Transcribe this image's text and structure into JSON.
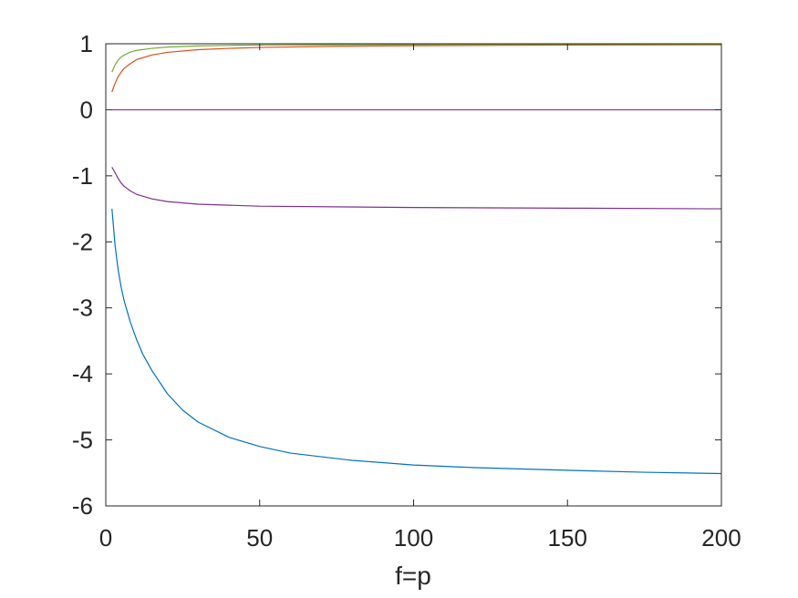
{
  "chart_data": {
    "type": "line",
    "title": "",
    "xlabel": "f=p",
    "ylabel": "",
    "xlim": [
      0,
      200
    ],
    "ylim": [
      -6,
      1
    ],
    "xticks": [
      0,
      50,
      100,
      150,
      200
    ],
    "yticks": [
      1,
      0,
      -1,
      -2,
      -3,
      -4,
      -5,
      -6
    ],
    "grid": false,
    "legend": "none",
    "series": [
      {
        "color": "#0072BD",
        "x": [
          2,
          3,
          4,
          5,
          6,
          8,
          10,
          12,
          15,
          20,
          25,
          30,
          40,
          50,
          60,
          80,
          100,
          120,
          150,
          175,
          200
        ],
        "y": [
          -1.5,
          -2.05,
          -2.42,
          -2.69,
          -2.9,
          -3.22,
          -3.48,
          -3.7,
          -3.95,
          -4.3,
          -4.55,
          -4.73,
          -4.96,
          -5.1,
          -5.2,
          -5.31,
          -5.38,
          -5.42,
          -5.46,
          -5.49,
          -5.51
        ]
      },
      {
        "color": "#D95319",
        "x": [
          2,
          3,
          4,
          5,
          6,
          8,
          10,
          15,
          20,
          30,
          40,
          50,
          75,
          100,
          150,
          200
        ],
        "y": [
          0.27,
          0.4,
          0.5,
          0.57,
          0.63,
          0.7,
          0.76,
          0.83,
          0.87,
          0.91,
          0.93,
          0.944,
          0.962,
          0.971,
          0.98,
          0.985
        ]
      },
      {
        "color": "#77AC30",
        "x": [
          2,
          3,
          4,
          5,
          6,
          8,
          10,
          15,
          20,
          30,
          40,
          50,
          100,
          200
        ],
        "y": [
          0.57,
          0.68,
          0.75,
          0.8,
          0.83,
          0.875,
          0.9,
          0.93,
          0.95,
          0.967,
          0.975,
          0.98,
          0.99,
          0.995
        ]
      },
      {
        "color": "#7E2F8E",
        "x": [
          2,
          200
        ],
        "y": [
          0.0,
          0.0
        ]
      },
      {
        "color": "#7E2F8E",
        "x": [
          2,
          3,
          4,
          5,
          6,
          8,
          10,
          15,
          20,
          30,
          50,
          100,
          150,
          200
        ],
        "y": [
          -0.87,
          -0.95,
          -1.04,
          -1.11,
          -1.16,
          -1.23,
          -1.28,
          -1.35,
          -1.39,
          -1.43,
          -1.46,
          -1.48,
          -1.49,
          -1.5
        ]
      }
    ]
  }
}
